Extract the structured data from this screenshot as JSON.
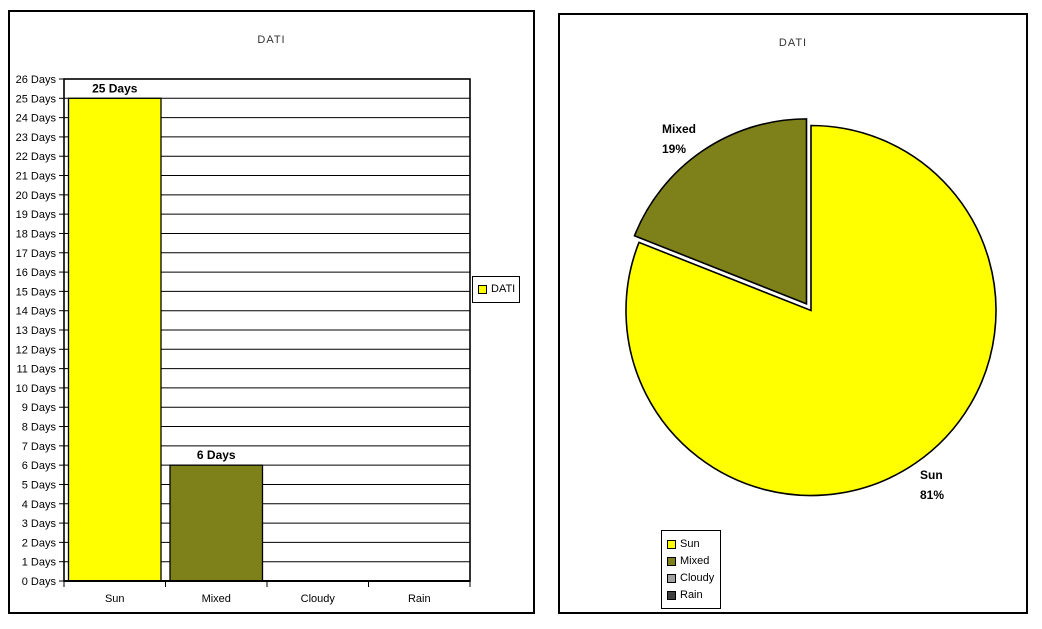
{
  "bar_panel": {
    "title": "DATI"
  },
  "pie_panel": {
    "title": "DATI"
  },
  "chart_data": [
    {
      "type": "bar",
      "title": "DATI",
      "categories": [
        "Sun",
        "Mixed",
        "Cloudy",
        "Rain"
      ],
      "values": [
        25,
        6,
        0,
        0
      ],
      "bar_colors": [
        "#FFFF00",
        "#7E811A",
        "#A0A0A0",
        "#3F3F3F"
      ],
      "data_labels": [
        "25 Days",
        "6 Days",
        "",
        ""
      ],
      "data_label_color": "#FF0000",
      "ylim": [
        0,
        26
      ],
      "ytick_step": 1,
      "y_tick_labels": [
        "0 Days",
        "1 Days",
        "2 Days",
        "3 Days",
        "4 Days",
        "5 Days",
        "6 Days",
        "7 Days",
        "8 Days",
        "9 Days",
        "10 Days",
        "11 Days",
        "12 Days",
        "13 Days",
        "14 Days",
        "15 Days",
        "16 Days",
        "17 Days",
        "18 Days",
        "19 Days",
        "20 Days",
        "21 Days",
        "22 Days",
        "23 Days",
        "24 Days",
        "25 Days",
        "26 Days"
      ],
      "grid": true,
      "legend": {
        "position": "right",
        "items": [
          {
            "label": "DATI",
            "color": "#FFFF00"
          }
        ]
      }
    },
    {
      "type": "pie",
      "title": "DATI",
      "labels": [
        "Sun",
        "Mixed",
        "Cloudy",
        "Rain"
      ],
      "values_pct": [
        81,
        19,
        0,
        0
      ],
      "colors": [
        "#FFFF00",
        "#7E811A",
        "#A0A0A0",
        "#3F3F3F"
      ],
      "exploded": [
        false,
        true,
        false,
        false
      ],
      "start_angle_deg": -90,
      "direction": "clockwise",
      "callouts": [
        {
          "lines": [
            "Sun",
            "81%"
          ]
        },
        {
          "lines": [
            "Mixed",
            "19%"
          ]
        },
        null,
        null
      ],
      "callout_color": "#FF0000",
      "legend": {
        "position": "bottom-left",
        "items": [
          {
            "label": "Sun",
            "color": "#FFFF00"
          },
          {
            "label": "Mixed",
            "color": "#7E811A"
          },
          {
            "label": "Cloudy",
            "color": "#A0A0A0"
          },
          {
            "label": "Rain",
            "color": "#3F3F3F"
          }
        ]
      }
    }
  ]
}
